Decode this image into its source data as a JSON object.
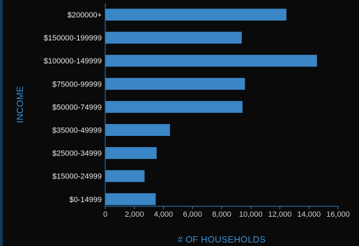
{
  "chart_data": {
    "type": "bar",
    "orientation": "horizontal",
    "title": "",
    "xlabel": "# OF HOUSEHOLDS",
    "ylabel": "INCOME",
    "categories": [
      "$200000+",
      "$150000-199999",
      "$100000-149999",
      "$75000-99999",
      "$50000-74999",
      "$35000-49999",
      "$25000-34999",
      "$15000-24999",
      "$0-14999"
    ],
    "values": [
      12450,
      9380,
      14550,
      9600,
      9430,
      4450,
      3530,
      2700,
      3470
    ],
    "xlim": [
      0,
      16000
    ],
    "xticks": [
      0,
      2000,
      4000,
      6000,
      8000,
      10000,
      12000,
      14000,
      16000
    ],
    "xtick_labels": [
      "0",
      "2,000",
      "4,000",
      "6,000",
      "8,000",
      "10,000",
      "12,000",
      "14,000",
      "16,000"
    ],
    "grid": false,
    "colors": {
      "bar": "#3a86c6",
      "axis": "#2f7fc0",
      "axis_title": "#3b8fd1",
      "background": "#0a0a0a"
    }
  }
}
